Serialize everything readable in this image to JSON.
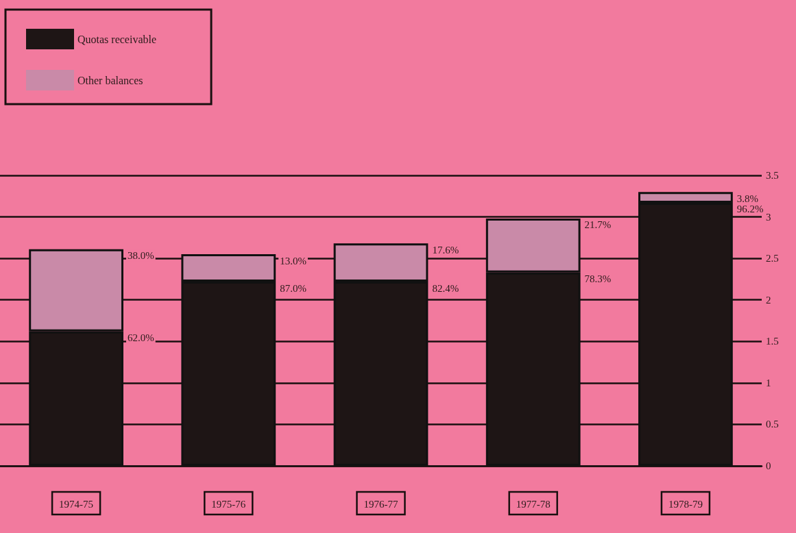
{
  "chart_data": {
    "type": "bar",
    "stacked": true,
    "categories": [
      "1974-75",
      "1975-76",
      "1976-77",
      "1977-78",
      "1978-79"
    ],
    "series": [
      {
        "name": "Quotas receivable",
        "color": "#1e1515",
        "values": [
          1.62,
          2.22,
          2.22,
          2.33,
          3.17
        ]
      },
      {
        "name": "Other balances",
        "color": "#c98aa8",
        "values": [
          0.99,
          0.33,
          0.46,
          0.65,
          0.13
        ]
      }
    ],
    "annotations": [
      "62.0%",
      "38.0%",
      "87.0%",
      "13.0%",
      "82.4%",
      "17.6%",
      "78.3%",
      "21.7%",
      "96.2%",
      "3.8%"
    ],
    "ylim": [
      0,
      3.5
    ],
    "yticks": [
      0,
      0.5,
      1,
      1.5,
      2,
      2.5,
      3,
      3.5
    ],
    "grid": "y",
    "legend": "top left"
  }
}
